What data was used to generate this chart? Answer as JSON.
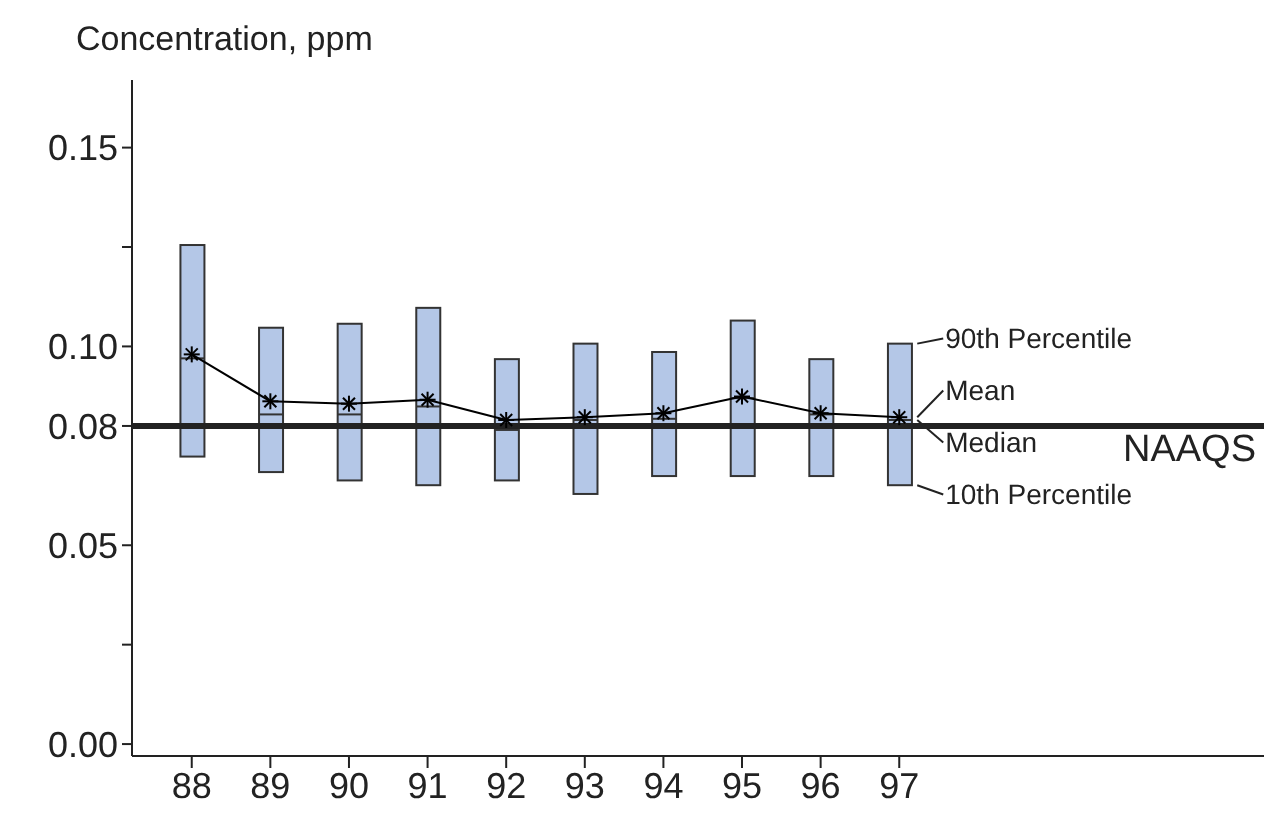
{
  "chart_data": {
    "type": "box",
    "ylabel": "Concentration, ppm",
    "categories": [
      "88",
      "89",
      "90",
      "91",
      "92",
      "93",
      "94",
      "95",
      "96",
      "97"
    ],
    "ylim": [
      -0.003,
      0.167
    ],
    "yticks": [
      {
        "value": 0,
        "label": "0.00"
      },
      {
        "value": 0.025,
        "label": null
      },
      {
        "value": 0.05,
        "label": "0.05"
      },
      {
        "value": 0.08,
        "label": "0.08"
      },
      {
        "value": 0.1,
        "label": "0.10"
      },
      {
        "value": 0.125,
        "label": null
      },
      {
        "value": 0.15,
        "label": "0.15"
      }
    ],
    "series": [
      {
        "color": "#b4c7e7",
        "boxes": [
          {
            "low": 0.0723,
            "q1": 0.0723,
            "median": 0.097,
            "q3": 0.1255,
            "high": 0.1255
          },
          {
            "low": 0.0684,
            "q1": 0.0684,
            "median": 0.0829,
            "q3": 0.1047,
            "high": 0.1047
          },
          {
            "low": 0.0663,
            "q1": 0.0663,
            "median": 0.0829,
            "q3": 0.1057,
            "high": 0.1057
          },
          {
            "low": 0.0651,
            "q1": 0.0651,
            "median": 0.0849,
            "q3": 0.1097,
            "high": 0.1097
          },
          {
            "low": 0.0663,
            "q1": 0.0663,
            "median": 0.079,
            "q3": 0.0968,
            "high": 0.0968
          },
          {
            "low": 0.0629,
            "q1": 0.0629,
            "median": 0.0815,
            "q3": 0.1007,
            "high": 0.1007
          },
          {
            "low": 0.0674,
            "q1": 0.0674,
            "median": 0.0818,
            "q3": 0.0986,
            "high": 0.0986
          },
          {
            "low": 0.0674,
            "q1": 0.0674,
            "median": 0.087,
            "q3": 0.1065,
            "high": 0.1065
          },
          {
            "low": 0.0674,
            "q1": 0.0674,
            "median": 0.0829,
            "q3": 0.0968,
            "high": 0.0968
          },
          {
            "low": 0.0651,
            "q1": 0.0651,
            "median": 0.0815,
            "q3": 0.1007,
            "high": 0.1007
          }
        ]
      },
      {
        "type": "line",
        "color": "#000000",
        "marker": "cross",
        "values": [
          0.098,
          0.0862,
          0.0856,
          0.0866,
          0.0815,
          0.0822,
          0.0832,
          0.0874,
          0.0832,
          0.0822
        ]
      }
    ],
    "ref_lines": [
      {
        "axis": "y",
        "value": 0.08,
        "label": "NAAQS",
        "color": "#222222"
      }
    ],
    "annotations": [
      {
        "text": "90th Percentile",
        "x": "97",
        "y": 0.1007
      },
      {
        "text": "Mean",
        "x": "97",
        "y": 0.0822
      },
      {
        "text": "Median",
        "x": "97",
        "y": 0.0815
      },
      {
        "text": "10th Percentile",
        "x": "97",
        "y": 0.0651
      }
    ]
  }
}
